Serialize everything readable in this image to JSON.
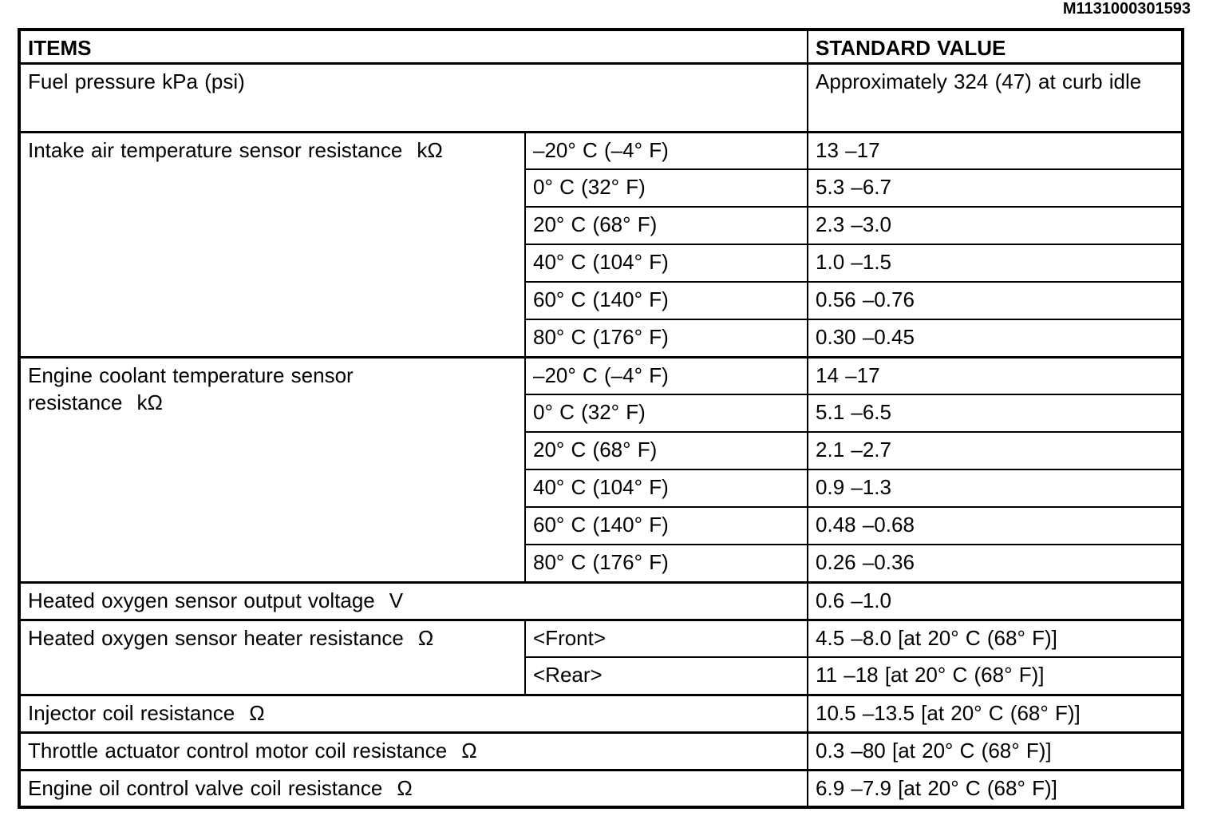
{
  "doc_code": "M1131000301593",
  "table": {
    "header": {
      "items": "ITEMS",
      "standard_value": "STANDARD VALUE"
    },
    "fuel_pressure": {
      "item": "Fuel pressure kPa (psi)",
      "value": "Approximately 324 (47) at curb idle"
    },
    "intake_air_temp": {
      "item": "Intake air temperature sensor resistance",
      "unit": "kΩ",
      "rows": [
        {
          "condition": "–20° C (–4° F)",
          "value": "13 –17"
        },
        {
          "condition": "0° C (32° F)",
          "value": "5.3 –6.7"
        },
        {
          "condition": "20° C (68° F)",
          "value": "2.3 –3.0"
        },
        {
          "condition": "40° C (104° F)",
          "value": "1.0 –1.5"
        },
        {
          "condition": "60° C (140° F)",
          "value": "0.56 –0.76"
        },
        {
          "condition": "80° C (176° F)",
          "value": "0.30 –0.45"
        }
      ]
    },
    "coolant_temp": {
      "item": "Engine coolant temperature sensor resistance",
      "unit": "kΩ",
      "rows": [
        {
          "condition": "–20° C (–4° F)",
          "value": "14 –17"
        },
        {
          "condition": "0° C (32° F)",
          "value": "5.1 –6.5"
        },
        {
          "condition": "20° C (68° F)",
          "value": "2.1 –2.7"
        },
        {
          "condition": "40° C (104° F)",
          "value": "0.9 –1.3"
        },
        {
          "condition": "60° C (140° F)",
          "value": "0.48 –0.68"
        },
        {
          "condition": "80° C (176° F)",
          "value": "0.26 –0.36"
        }
      ]
    },
    "o2_output_voltage": {
      "item": "Heated oxygen sensor output voltage",
      "unit": "V",
      "value": "0.6 –1.0"
    },
    "o2_heater_resistance": {
      "item": "Heated oxygen sensor heater resistance",
      "unit": "Ω",
      "rows": [
        {
          "condition": "<Front>",
          "value": "4.5 –8.0 [at 20° C (68° F)]"
        },
        {
          "condition": "<Rear>",
          "value": "11 –18 [at 20° C (68° F)]"
        }
      ]
    },
    "injector_coil": {
      "item": "Injector coil resistance",
      "unit": "Ω",
      "value": "10.5 –13.5 [at 20° C (68° F)]"
    },
    "throttle_motor_coil": {
      "item": "Throttle actuator control motor coil resistance",
      "unit": "Ω",
      "value": "0.3 –80 [at 20° C (68° F)]"
    },
    "oil_control_valve_coil": {
      "item": "Engine oil control valve coil resistance",
      "unit": "Ω",
      "value": "6.9 –7.9 [at 20° C (68° F)]"
    }
  }
}
